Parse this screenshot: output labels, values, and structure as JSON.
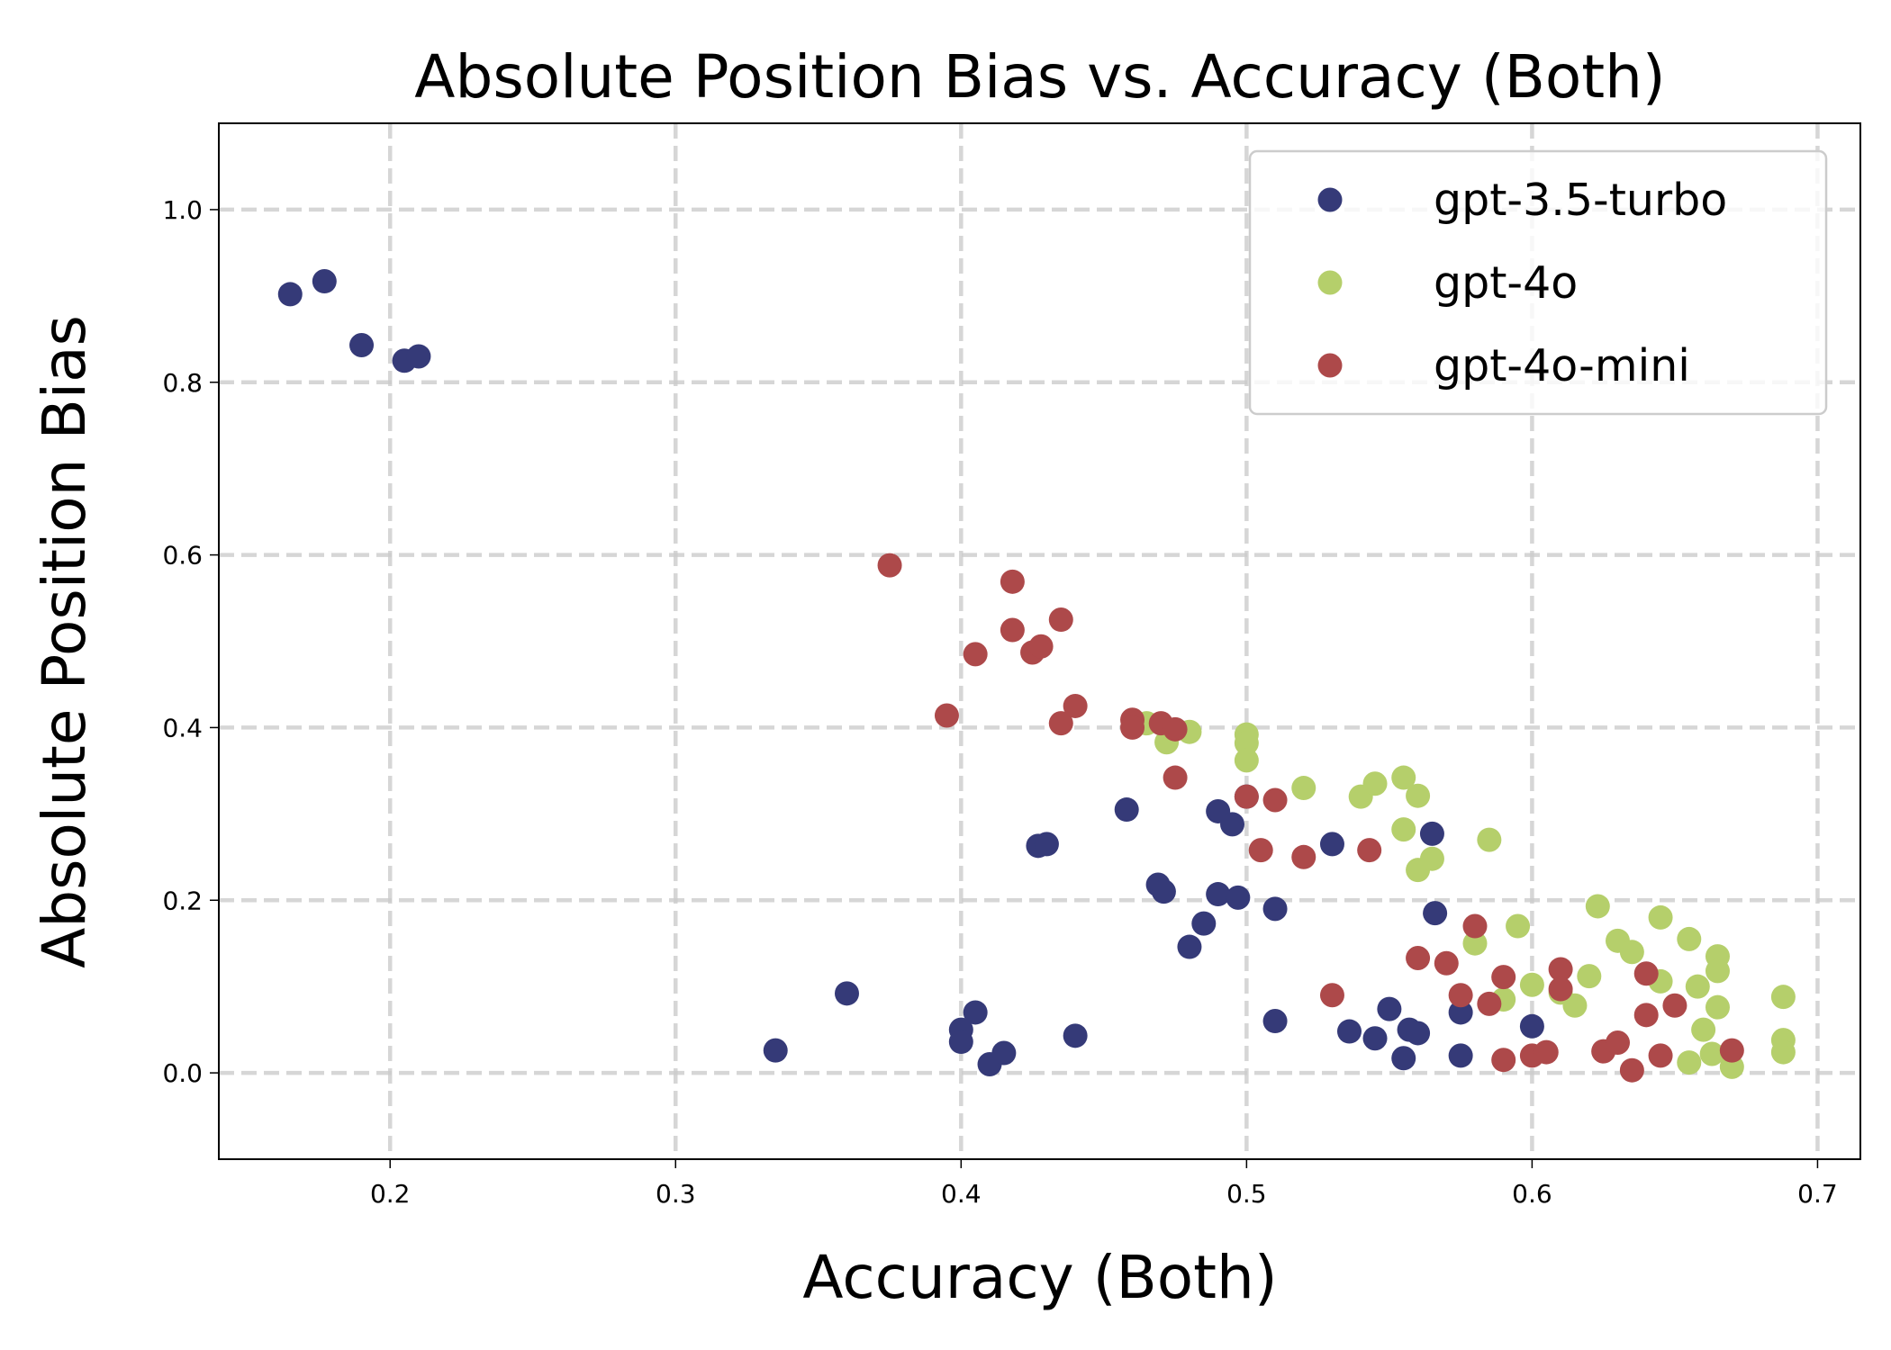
{
  "chart_data": {
    "type": "scatter",
    "title": "Absolute Position Bias vs. Accuracy (Both)",
    "xlabel": "Accuracy (Both)",
    "ylabel": "Absolute Position Bias",
    "xlim": [
      0.14,
      0.715
    ],
    "ylim": [
      -0.1,
      1.1
    ],
    "x_ticks": [
      0.2,
      0.3,
      0.4,
      0.5,
      0.6,
      0.7
    ],
    "x_tick_labels": [
      "0.2",
      "0.3",
      "0.4",
      "0.5",
      "0.6",
      "0.7"
    ],
    "y_ticks": [
      0.0,
      0.2,
      0.4,
      0.6,
      0.8,
      1.0
    ],
    "y_tick_labels": [
      "0.0",
      "0.2",
      "0.4",
      "0.6",
      "0.8",
      "1.0"
    ],
    "grid": true,
    "legend_position": "top-right",
    "series": [
      {
        "name": "gpt-3.5-turbo",
        "color": "#353a78",
        "points": [
          [
            0.165,
            0.902
          ],
          [
            0.177,
            0.917
          ],
          [
            0.19,
            0.843
          ],
          [
            0.205,
            0.825
          ],
          [
            0.21,
            0.83
          ],
          [
            0.335,
            0.026
          ],
          [
            0.36,
            0.092
          ],
          [
            0.4,
            0.05
          ],
          [
            0.4,
            0.036
          ],
          [
            0.405,
            0.07
          ],
          [
            0.41,
            0.01
          ],
          [
            0.415,
            0.023
          ],
          [
            0.427,
            0.263
          ],
          [
            0.43,
            0.265
          ],
          [
            0.44,
            0.043
          ],
          [
            0.458,
            0.305
          ],
          [
            0.469,
            0.218
          ],
          [
            0.471,
            0.21
          ],
          [
            0.48,
            0.146
          ],
          [
            0.485,
            0.173
          ],
          [
            0.49,
            0.303
          ],
          [
            0.49,
            0.207
          ],
          [
            0.495,
            0.288
          ],
          [
            0.497,
            0.203
          ],
          [
            0.5,
            0.32
          ],
          [
            0.51,
            0.19
          ],
          [
            0.51,
            0.06
          ],
          [
            0.53,
            0.265
          ],
          [
            0.536,
            0.048
          ],
          [
            0.545,
            0.04
          ],
          [
            0.55,
            0.074
          ],
          [
            0.555,
            0.017
          ],
          [
            0.557,
            0.05
          ],
          [
            0.56,
            0.046
          ],
          [
            0.565,
            0.277
          ],
          [
            0.566,
            0.185
          ],
          [
            0.575,
            0.07
          ],
          [
            0.575,
            0.02
          ],
          [
            0.6,
            0.054
          ]
        ]
      },
      {
        "name": "gpt-4o",
        "color": "#b5cf6b",
        "points": [
          [
            0.465,
            0.405
          ],
          [
            0.472,
            0.383
          ],
          [
            0.48,
            0.395
          ],
          [
            0.5,
            0.392
          ],
          [
            0.5,
            0.382
          ],
          [
            0.5,
            0.362
          ],
          [
            0.52,
            0.33
          ],
          [
            0.54,
            0.32
          ],
          [
            0.545,
            0.335
          ],
          [
            0.555,
            0.342
          ],
          [
            0.555,
            0.282
          ],
          [
            0.56,
            0.321
          ],
          [
            0.56,
            0.235
          ],
          [
            0.565,
            0.248
          ],
          [
            0.58,
            0.15
          ],
          [
            0.585,
            0.27
          ],
          [
            0.59,
            0.085
          ],
          [
            0.595,
            0.17
          ],
          [
            0.6,
            0.102
          ],
          [
            0.61,
            0.093
          ],
          [
            0.615,
            0.078
          ],
          [
            0.62,
            0.112
          ],
          [
            0.623,
            0.193
          ],
          [
            0.63,
            0.153
          ],
          [
            0.635,
            0.14
          ],
          [
            0.645,
            0.18
          ],
          [
            0.645,
            0.106
          ],
          [
            0.655,
            0.155
          ],
          [
            0.655,
            0.012
          ],
          [
            0.658,
            0.1
          ],
          [
            0.66,
            0.05
          ],
          [
            0.663,
            0.022
          ],
          [
            0.665,
            0.135
          ],
          [
            0.665,
            0.118
          ],
          [
            0.665,
            0.076
          ],
          [
            0.67,
            0.007
          ],
          [
            0.688,
            0.088
          ],
          [
            0.688,
            0.038
          ],
          [
            0.688,
            0.024
          ]
        ]
      },
      {
        "name": "gpt-4o-mini",
        "color": "#ad494a",
        "points": [
          [
            0.375,
            0.588
          ],
          [
            0.395,
            0.414
          ],
          [
            0.405,
            0.485
          ],
          [
            0.418,
            0.569
          ],
          [
            0.418,
            0.513
          ],
          [
            0.425,
            0.487
          ],
          [
            0.428,
            0.494
          ],
          [
            0.435,
            0.525
          ],
          [
            0.435,
            0.405
          ],
          [
            0.44,
            0.425
          ],
          [
            0.46,
            0.409
          ],
          [
            0.46,
            0.4
          ],
          [
            0.47,
            0.405
          ],
          [
            0.475,
            0.398
          ],
          [
            0.475,
            0.342
          ],
          [
            0.5,
            0.32
          ],
          [
            0.505,
            0.258
          ],
          [
            0.51,
            0.316
          ],
          [
            0.52,
            0.25
          ],
          [
            0.53,
            0.09
          ],
          [
            0.543,
            0.258
          ],
          [
            0.56,
            0.133
          ],
          [
            0.57,
            0.127
          ],
          [
            0.575,
            0.09
          ],
          [
            0.58,
            0.17
          ],
          [
            0.585,
            0.08
          ],
          [
            0.59,
            0.111
          ],
          [
            0.59,
            0.015
          ],
          [
            0.6,
            0.02
          ],
          [
            0.605,
            0.024
          ],
          [
            0.61,
            0.12
          ],
          [
            0.61,
            0.097
          ],
          [
            0.625,
            0.025
          ],
          [
            0.63,
            0.035
          ],
          [
            0.635,
            0.003
          ],
          [
            0.64,
            0.115
          ],
          [
            0.64,
            0.067
          ],
          [
            0.645,
            0.02
          ],
          [
            0.65,
            0.078
          ],
          [
            0.67,
            0.026
          ]
        ]
      }
    ]
  }
}
